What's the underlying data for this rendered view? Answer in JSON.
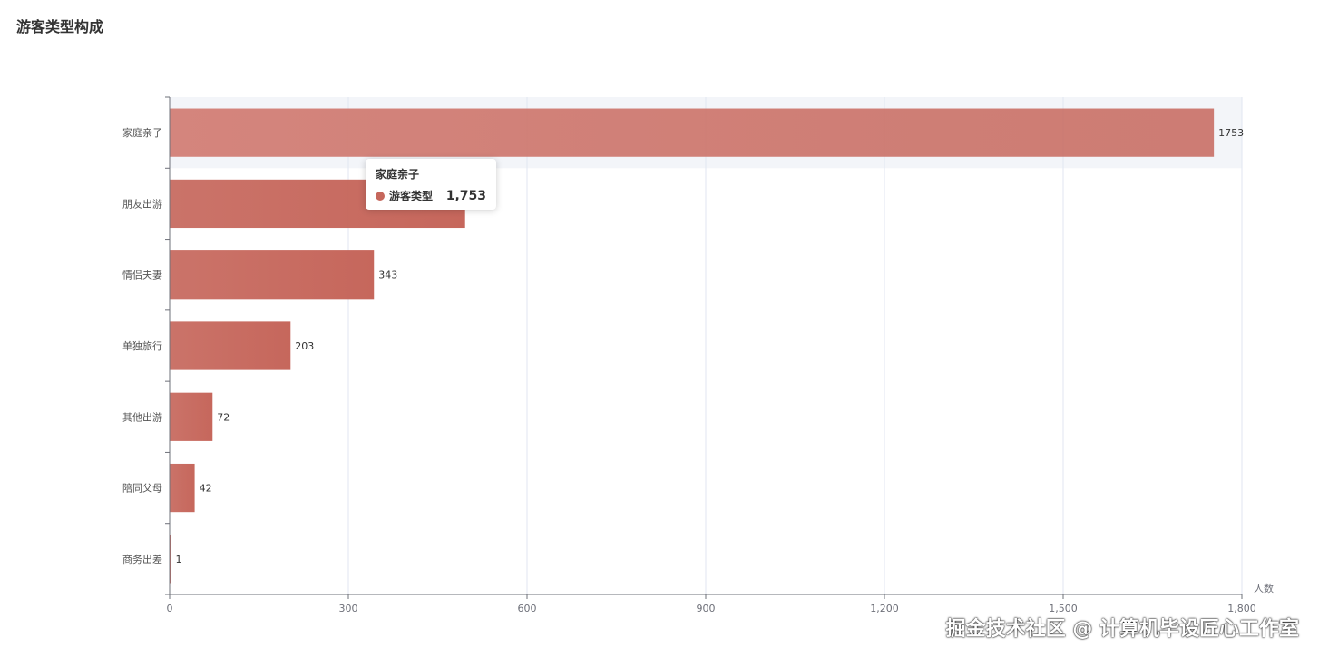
{
  "title": "游客类型构成",
  "colors": {
    "bar": "#c6675c",
    "bar_highlight": "#d4857d",
    "axis": "#6e7079",
    "grid": "#e0e6f1",
    "emphasis_band": "#f3f5f9"
  },
  "chart_data": {
    "type": "bar",
    "orientation": "horizontal",
    "categories": [
      "家庭亲子",
      "朋友出游",
      "情侣夫妻",
      "单独旅行",
      "其他出游",
      "陪同父母",
      "商务出差"
    ],
    "series": [
      {
        "name": "游客类型",
        "values": [
          1753,
          496,
          343,
          203,
          72,
          42,
          1
        ]
      }
    ],
    "data_labels": [
      "1753",
      "",
      "343",
      "203",
      "72",
      "42",
      "1"
    ],
    "xlim": [
      0,
      1800
    ],
    "xticks": [
      0,
      300,
      600,
      900,
      1200,
      1500,
      1800
    ],
    "xtick_labels": [
      "0",
      "300",
      "600",
      "900",
      "1,200",
      "1,500",
      "1,800"
    ],
    "xlabel": "人数",
    "ylabel": "",
    "grid": true,
    "highlighted_category": "家庭亲子"
  },
  "tooltip": {
    "title": "家庭亲子",
    "series_name": "游客类型",
    "value": "1,753"
  },
  "watermark": "掘金技术社区 @ 计算机毕设匠心工作室"
}
